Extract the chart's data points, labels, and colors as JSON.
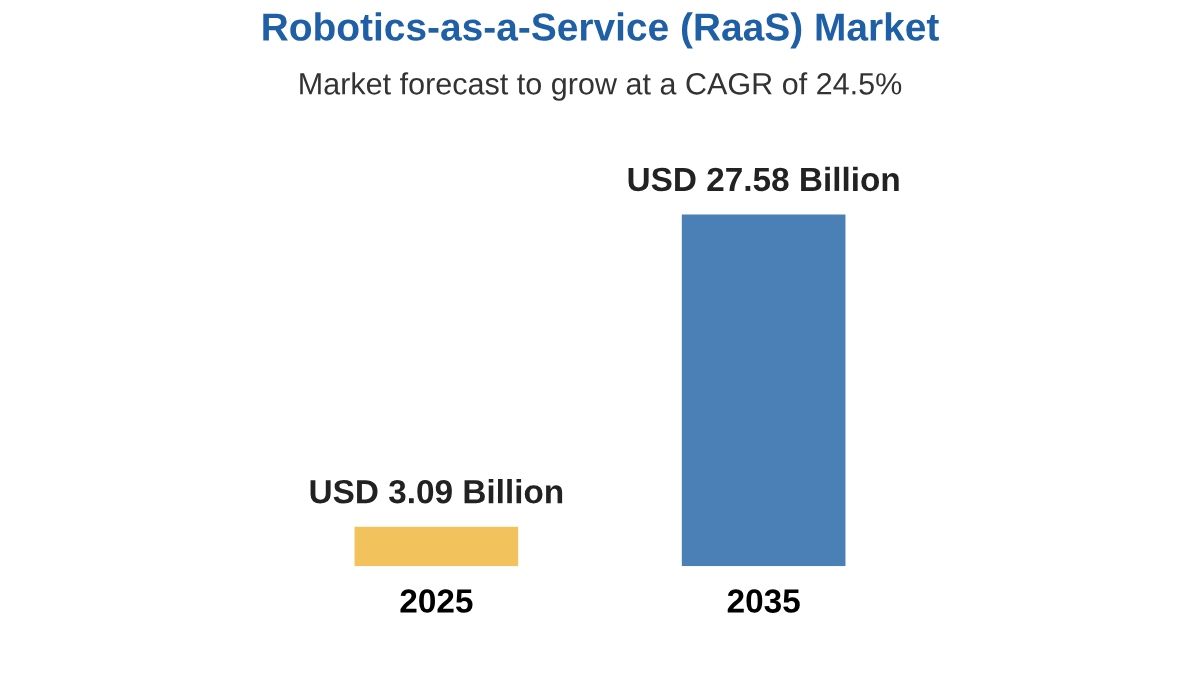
{
  "chart_data": {
    "type": "bar",
    "title": "Robotics-as-a-Service (RaaS) Market",
    "subtitle": "Market forecast to grow at a CAGR of 24.5%",
    "categories": [
      "2025",
      "2035"
    ],
    "values": [
      3.09,
      27.58
    ],
    "colors": [
      "#f2c25c",
      "#4a80b6"
    ],
    "value_labels": [
      "USD 3.09 Billion",
      "USD 27.58 Billion"
    ]
  }
}
